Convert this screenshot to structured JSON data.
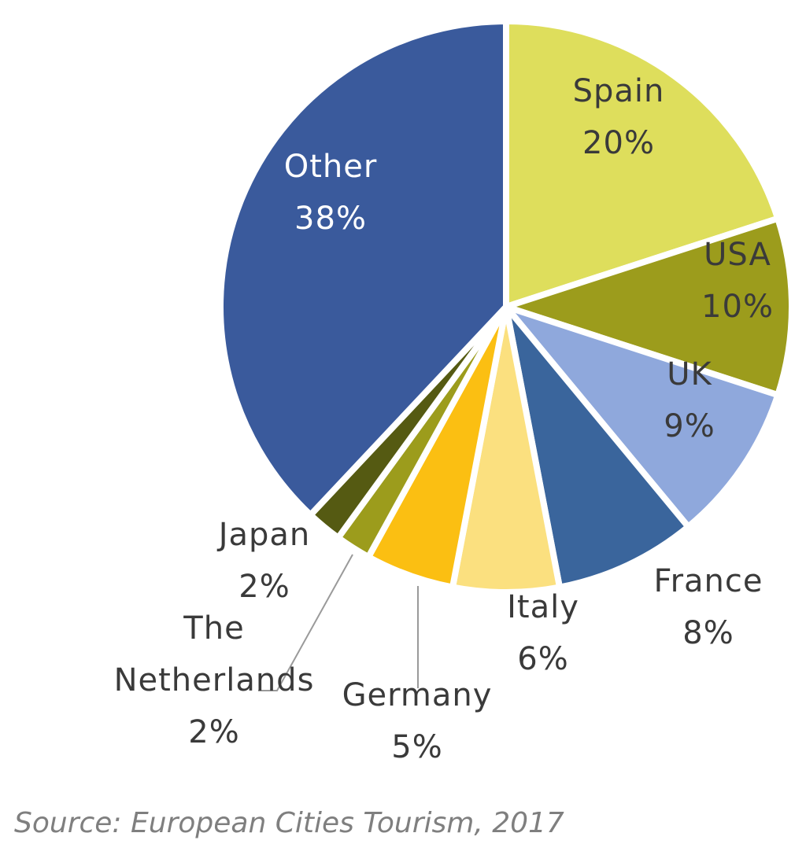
{
  "chart_data": {
    "type": "pie",
    "title": "",
    "categories": [
      "Spain",
      "USA",
      "UK",
      "France",
      "Italy",
      "Germany",
      "The Netherlands",
      "Japan",
      "Other"
    ],
    "values": [
      20,
      10,
      9,
      8,
      6,
      5,
      2,
      2,
      38
    ],
    "value_labels": [
      "20%",
      "10%",
      "9%",
      "8%",
      "6%",
      "5%",
      "2%",
      "2%",
      "38%"
    ],
    "label_lines": [
      [
        "Spain"
      ],
      [
        "USA"
      ],
      [
        "UK"
      ],
      [
        "France"
      ],
      [
        "Italy"
      ],
      [
        "Germany"
      ],
      [
        "The",
        "Netherlands"
      ],
      [
        "Japan"
      ],
      [
        "Other"
      ]
    ],
    "colors": [
      "#dede5c",
      "#9c9c1c",
      "#8fa8dc",
      "#3a659c",
      "#fbe07f",
      "#fbbf12",
      "#9c9c1c",
      "#555a12",
      "#3a5a9c"
    ],
    "label_colors": [
      "#3a3a3a",
      "#3a3a3a",
      "#3a3a3a",
      "#3a3a3a",
      "#3a3a3a",
      "#3a3a3a",
      "#3a3a3a",
      "#3a3a3a",
      "#ffffff"
    ],
    "start_angle_deg": 0,
    "direction": "clockwise",
    "legend": "none"
  },
  "source": "Source: European Cities Tourism, 2017"
}
